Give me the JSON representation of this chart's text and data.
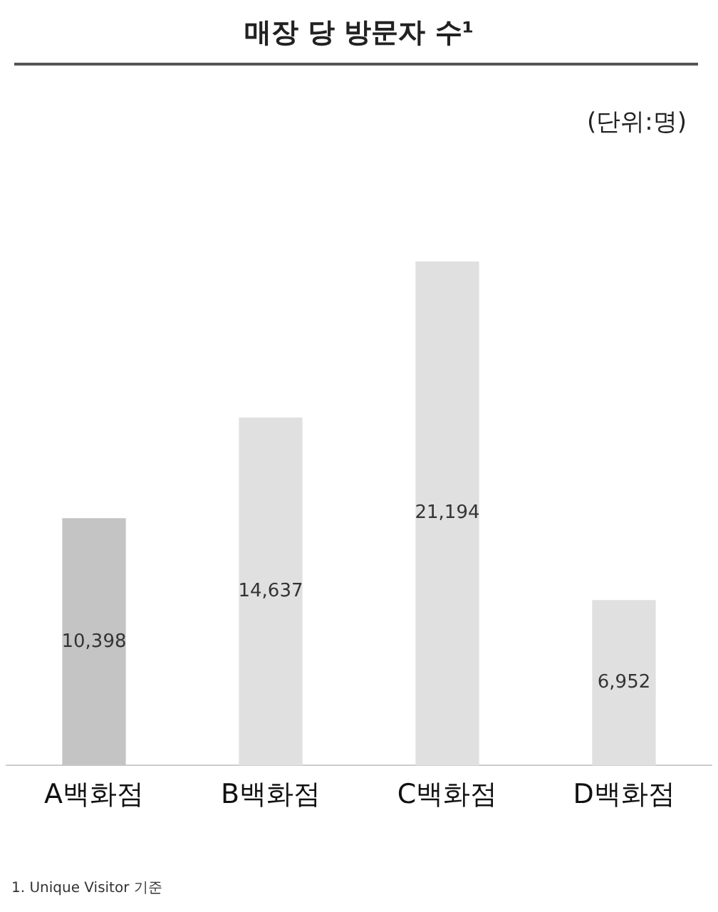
{
  "chart_data": {
    "type": "bar",
    "title": "매장 당 방문자 수¹",
    "categories": [
      "A백화점",
      "B백화점",
      "C백화점",
      "D백화점"
    ],
    "values": [
      10398,
      14637,
      21194,
      6952
    ],
    "colors": [
      "#c4c4c4",
      "#e0e0e0",
      "#e0e0e0",
      "#e0e0e0"
    ],
    "value_labels": [
      "10,398",
      "14,637",
      "21,194",
      "6,952"
    ],
    "grid": false,
    "legend": false,
    "tick_labels": "x",
    "annotations": [
      "(단위:명)",
      "1. Unique Visitor 기준"
    ]
  }
}
